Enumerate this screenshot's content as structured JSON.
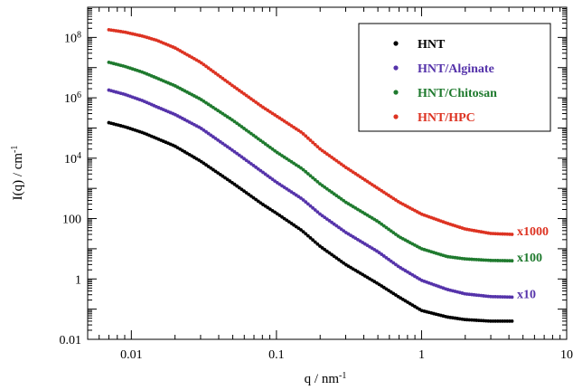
{
  "chart_data": {
    "type": "scatter",
    "title": "",
    "xlabel": "q / nm",
    "xlabel_sup": "-1",
    "ylabel": "I(q) / cm",
    "ylabel_sup": "-1",
    "xscale": "log",
    "yscale": "log",
    "xlim": [
      0.005,
      10
    ],
    "ylim": [
      0.01,
      1000000000
    ],
    "grid": false,
    "legend_position": "top-right",
    "x_ticks": [
      {
        "value": 0.01,
        "label": "0.01"
      },
      {
        "value": 0.1,
        "label": "0.1"
      },
      {
        "value": 1,
        "label": "1"
      },
      {
        "value": 10,
        "label": "10"
      }
    ],
    "y_ticks": [
      {
        "value": 0.01,
        "label": "0.01",
        "sup": ""
      },
      {
        "value": 1,
        "label": "1",
        "sup": ""
      },
      {
        "value": 100,
        "label": "100",
        "sup": ""
      },
      {
        "value": 10000,
        "label": "10",
        "sup": "4"
      },
      {
        "value": 1000000,
        "label": "10",
        "sup": "6"
      },
      {
        "value": 100000000,
        "label": "10",
        "sup": "8"
      }
    ],
    "series": [
      {
        "name": "HNT",
        "color": "#000000",
        "points": [
          [
            0.007,
            150000
          ],
          [
            0.009,
            110000
          ],
          [
            0.012,
            70000
          ],
          [
            0.015,
            45000
          ],
          [
            0.02,
            25000
          ],
          [
            0.03,
            8000
          ],
          [
            0.05,
            1500
          ],
          [
            0.08,
            300
          ],
          [
            0.1,
            150
          ],
          [
            0.15,
            40
          ],
          [
            0.2,
            12
          ],
          [
            0.3,
            3
          ],
          [
            0.5,
            0.7
          ],
          [
            0.7,
            0.25
          ],
          [
            1,
            0.09
          ],
          [
            1.5,
            0.055
          ],
          [
            2,
            0.045
          ],
          [
            3,
            0.04
          ],
          [
            4.2,
            0.04
          ]
        ]
      },
      {
        "name": "HNT/Alginate",
        "color": "#5533aa",
        "multiplier_label": "x10",
        "points": [
          [
            0.007,
            1800000
          ],
          [
            0.009,
            1300000
          ],
          [
            0.012,
            800000
          ],
          [
            0.015,
            500000
          ],
          [
            0.02,
            280000
          ],
          [
            0.03,
            100000
          ],
          [
            0.05,
            18000
          ],
          [
            0.08,
            3500
          ],
          [
            0.1,
            1600
          ],
          [
            0.15,
            450
          ],
          [
            0.2,
            140
          ],
          [
            0.3,
            35
          ],
          [
            0.5,
            8
          ],
          [
            0.7,
            2.5
          ],
          [
            1,
            0.9
          ],
          [
            1.5,
            0.45
          ],
          [
            2,
            0.32
          ],
          [
            3,
            0.26
          ],
          [
            4.2,
            0.25
          ]
        ]
      },
      {
        "name": "HNT/Chitosan",
        "color": "#1f7a2e",
        "multiplier_label": "x100",
        "points": [
          [
            0.007,
            15000000
          ],
          [
            0.009,
            11000000
          ],
          [
            0.012,
            7000000
          ],
          [
            0.015,
            4500000
          ],
          [
            0.02,
            2500000
          ],
          [
            0.03,
            900000
          ],
          [
            0.05,
            180000
          ],
          [
            0.08,
            35000
          ],
          [
            0.1,
            16000
          ],
          [
            0.15,
            4500
          ],
          [
            0.2,
            1400
          ],
          [
            0.3,
            350
          ],
          [
            0.5,
            80
          ],
          [
            0.7,
            25
          ],
          [
            1,
            10
          ],
          [
            1.5,
            5.5
          ],
          [
            2,
            4.6
          ],
          [
            3,
            4.1
          ],
          [
            4.2,
            4
          ]
        ]
      },
      {
        "name": "HNT/HPC",
        "color": "#dd3322",
        "multiplier_label": "x1000",
        "points": [
          [
            0.007,
            180000000
          ],
          [
            0.009,
            150000000
          ],
          [
            0.012,
            110000000
          ],
          [
            0.015,
            80000000
          ],
          [
            0.02,
            45000000
          ],
          [
            0.03,
            15000000
          ],
          [
            0.05,
            2500000
          ],
          [
            0.08,
            500000
          ],
          [
            0.1,
            250000
          ],
          [
            0.15,
            70000
          ],
          [
            0.2,
            20000
          ],
          [
            0.3,
            5000
          ],
          [
            0.5,
            1000
          ],
          [
            0.7,
            350
          ],
          [
            1,
            140
          ],
          [
            1.5,
            70
          ],
          [
            2,
            45
          ],
          [
            3,
            32
          ],
          [
            4.2,
            30
          ]
        ]
      }
    ]
  }
}
